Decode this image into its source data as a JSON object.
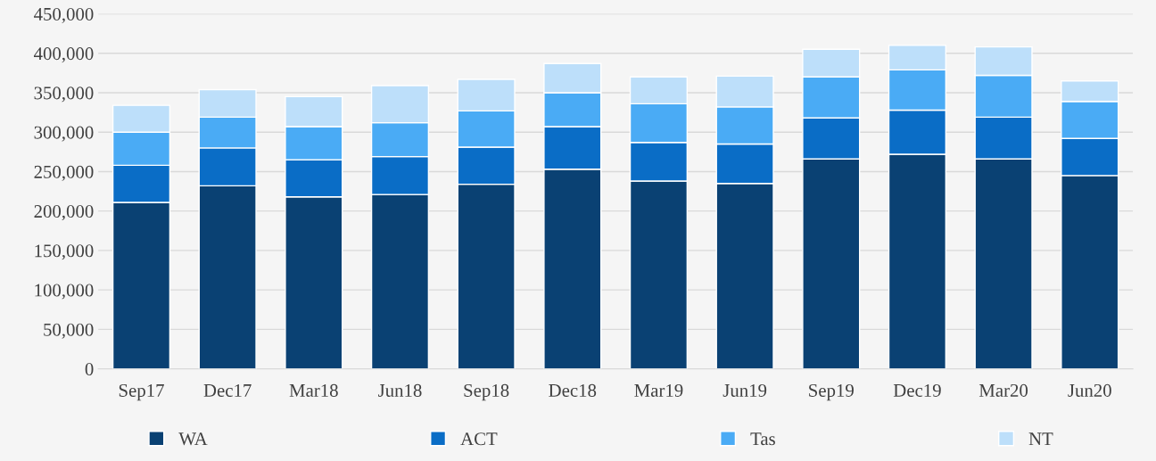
{
  "chart_data": {
    "type": "bar",
    "stacked": true,
    "categories": [
      "Sep17",
      "Dec17",
      "Mar18",
      "Jun18",
      "Sep18",
      "Dec18",
      "Mar19",
      "Jun19",
      "Sep19",
      "Dec19",
      "Mar20",
      "Jun20"
    ],
    "series": [
      {
        "name": "WA",
        "color": "#0a4173",
        "values": [
          211000,
          232000,
          218000,
          221000,
          234000,
          253000,
          238000,
          235000,
          266000,
          272000,
          266000,
          245000
        ]
      },
      {
        "name": "ACT",
        "color": "#0a6dc6",
        "values": [
          47000,
          48000,
          47000,
          48000,
          47000,
          54000,
          49000,
          50000,
          52000,
          56000,
          53000,
          47000
        ]
      },
      {
        "name": "Tas",
        "color": "#4aabf5",
        "values": [
          42000,
          39000,
          42000,
          43000,
          46000,
          43000,
          49000,
          47000,
          52000,
          51000,
          53000,
          47000
        ]
      },
      {
        "name": "NT",
        "color": "#bddffa",
        "values": [
          34000,
          35000,
          38000,
          47000,
          40000,
          37000,
          34000,
          39000,
          35000,
          31000,
          36000,
          26000
        ]
      }
    ],
    "ylim": [
      0,
      450000
    ],
    "yticks": [
      0,
      {
        "value": 50000,
        "label": "50,000"
      },
      {
        "value": 100000,
        "label": "100,000"
      },
      {
        "value": 150000,
        "label": "150,000"
      },
      {
        "value": 200000,
        "label": "200,000"
      },
      {
        "value": 250000,
        "label": "250,000"
      },
      {
        "value": 300000,
        "label": "300,000"
      },
      {
        "value": 350000,
        "label": "350,000"
      },
      {
        "value": 400000,
        "label": "400,000"
      },
      {
        "value": 450000,
        "label": "450,000"
      }
    ],
    "grid": "y",
    "legend": "bottom"
  }
}
